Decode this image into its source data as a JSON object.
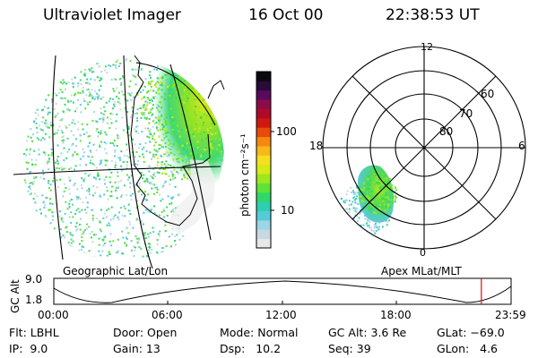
{
  "header": {
    "title": "Ultraviolet Imager",
    "date": "16 Oct 00",
    "time": "22:38:53 UT"
  },
  "colorbar": {
    "unit_label": "photon cm⁻²s⁻¹",
    "ticks": [
      "100",
      "10"
    ],
    "colors": [
      "#e8e8e8",
      "#c9d8e0",
      "#9ad6e6",
      "#55cbd8",
      "#2ecfb0",
      "#2fd86a",
      "#5fe23a",
      "#9ee61e",
      "#d6ea18",
      "#f4e020",
      "#f8b818",
      "#f48810",
      "#e84a0c",
      "#d0180e",
      "#b00a2a",
      "#8c0c4a",
      "#5a0a5e",
      "#2a0a3a",
      "#0a0a10"
    ]
  },
  "left_panel": {
    "caption": "Geographic Lat/Lon"
  },
  "right_panel": {
    "caption": "Apex MLat/MLT",
    "mlt_labels": {
      "top": "12",
      "left": "18",
      "right": "6",
      "bottom": "0"
    },
    "lat_labels": [
      "60",
      "70",
      "80"
    ]
  },
  "timeline": {
    "ylabel": "GC Alt",
    "yticks": [
      "9.0",
      "1.8"
    ],
    "xticks": [
      "00:00",
      "06:00",
      "12:00",
      "18:00",
      "23:59"
    ],
    "current_time_fraction": 0.935
  },
  "info": {
    "flt": "Flt: LBHL",
    "door": "Door: Open",
    "mode": "Mode: Normal",
    "gc_alt": "GC Alt: 3.6 Re",
    "glat": "GLat: −69.0",
    "ip": "IP:  9.0",
    "gain": "Gain: 13",
    "dsp": "Dsp:   10.2",
    "seq": "Seq: 39",
    "glon": "GLon:   4.6"
  }
}
